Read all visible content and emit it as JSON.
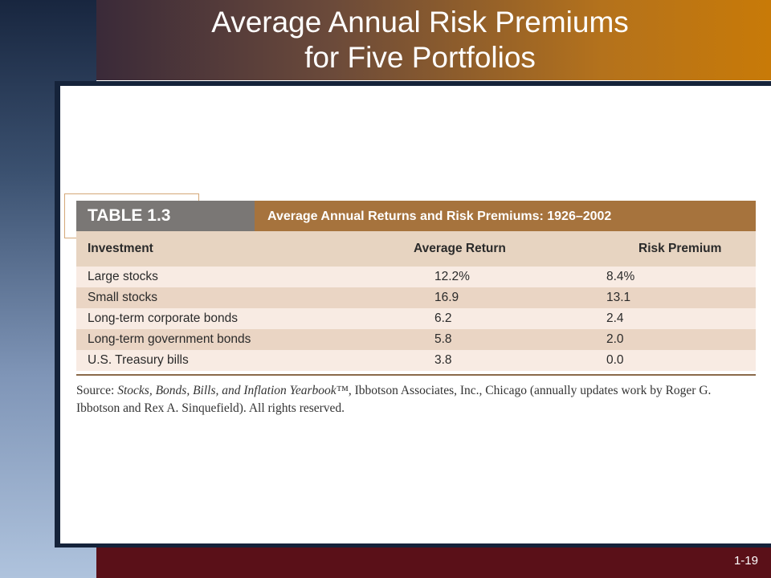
{
  "slide": {
    "title_line1": "Average Annual Risk Premiums",
    "title_line2": "for Five Portfolios",
    "page_number": "1-19"
  },
  "table": {
    "label": "TABLE 1.3",
    "caption": "Average Annual Returns and Risk Premiums: 1926–2002",
    "columns": [
      "Investment",
      "Average Return",
      "Risk Premium"
    ],
    "rows": [
      {
        "investment": "Large stocks",
        "average_return": "12.2%",
        "risk_premium": "8.4%"
      },
      {
        "investment": "Small stocks",
        "average_return": "16.9",
        "risk_premium": "13.1"
      },
      {
        "investment": "Long-term corporate bonds",
        "average_return": "6.2",
        "risk_premium": "2.4"
      },
      {
        "investment": "Long-term government bonds",
        "average_return": "5.8",
        "risk_premium": "2.0"
      },
      {
        "investment": "U.S. Treasury bills",
        "average_return": "3.8",
        "risk_premium": "0.0"
      }
    ],
    "source_prefix": "Source: ",
    "source_title": "Stocks, Bonds, Bills, and Inflation Yearbook™",
    "source_rest": ", Ibbotson Associates, Inc., Chicago (annually updates work by Roger G. Ibbotson and Rex A. Sinquefield). All rights reserved."
  },
  "colors": {
    "header_band_right": "#c87a08",
    "footer_band": "#5a1018",
    "table_header": "#a6733d",
    "table_label": "#7a7775"
  }
}
